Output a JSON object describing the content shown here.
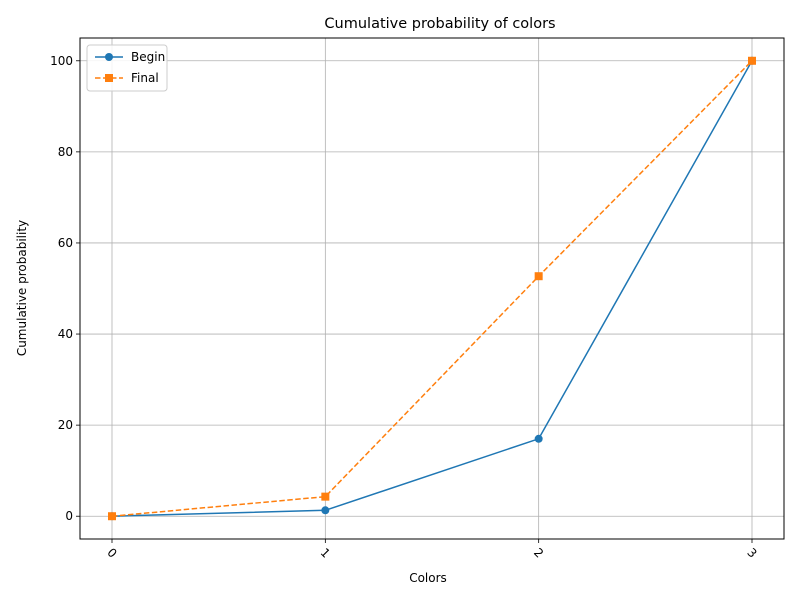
{
  "chart_data": {
    "type": "line",
    "title": "Cumulative probability of colors",
    "xlabel": "Colors",
    "ylabel": "Cumulative probability",
    "x": [
      0,
      1,
      2,
      3
    ],
    "x_tick_labels": [
      "0",
      "1",
      "2",
      "3"
    ],
    "y_tick_labels": [
      "0",
      "20",
      "40",
      "60",
      "80",
      "100"
    ],
    "y_ticks": [
      0,
      20,
      40,
      60,
      80,
      100
    ],
    "xlim": [
      -0.15,
      3.15
    ],
    "ylim": [
      -5,
      105
    ],
    "grid": true,
    "legend_position": "top-left",
    "series": [
      {
        "name": "Begin",
        "values": [
          0,
          1.3,
          17,
          100
        ],
        "color": "#1f77b4",
        "marker": "circle",
        "linestyle": "solid"
      },
      {
        "name": "Final",
        "values": [
          0,
          4.3,
          52.7,
          100
        ],
        "color": "#ff7f0e",
        "marker": "square",
        "linestyle": "dashed"
      }
    ]
  }
}
